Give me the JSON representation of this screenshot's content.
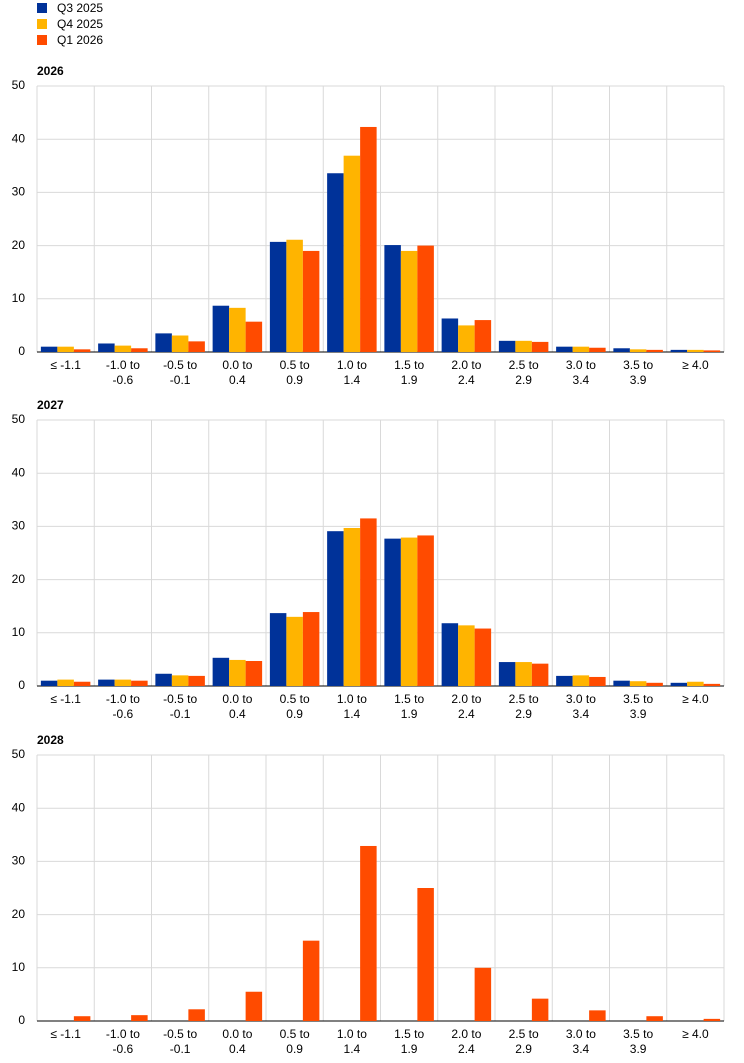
{
  "chart_data": [
    {
      "type": "bar",
      "title": "2026",
      "categories": [
        "≤ -1.1",
        "-1.0 to -0.6",
        "-0.5 to -0.1",
        "0.0 to 0.4",
        "0.5 to 0.9",
        "1.0 to 1.4",
        "1.5 to 1.9",
        "2.0 to 2.4",
        "2.5 to 2.9",
        "3.0 to 3.4",
        "3.5 to 3.9",
        "≥ 4.0"
      ],
      "series": [
        {
          "name": "Q3 2025",
          "color": "#003299",
          "values": [
            1.0,
            1.6,
            3.5,
            8.7,
            20.7,
            33.6,
            20.1,
            6.3,
            2.1,
            1.0,
            0.7,
            0.4
          ]
        },
        {
          "name": "Q4 2025",
          "color": "#ffb400",
          "values": [
            1.0,
            1.2,
            3.1,
            8.3,
            21.1,
            36.9,
            19.0,
            5.0,
            2.1,
            1.0,
            0.5,
            0.4
          ]
        },
        {
          "name": "Q1 2026",
          "color": "#ff4b00",
          "values": [
            0.5,
            0.7,
            2.0,
            5.7,
            19.0,
            42.3,
            20.0,
            6.0,
            1.9,
            0.8,
            0.4,
            0.3
          ]
        }
      ],
      "ylim": [
        0,
        50
      ],
      "yticks": [
        0,
        10,
        20,
        30,
        40,
        50
      ],
      "grid": true
    },
    {
      "type": "bar",
      "title": "2027",
      "categories": [
        "≤ -1.1",
        "-1.0 to -0.6",
        "-0.5 to -0.1",
        "0.0 to 0.4",
        "0.5 to 0.9",
        "1.0 to 1.4",
        "1.5 to 1.9",
        "2.0 to 2.4",
        "2.5 to 2.9",
        "3.0 to 3.4",
        "3.5 to 3.9",
        "≥ 4.0"
      ],
      "series": [
        {
          "name": "Q3 2025",
          "color": "#003299",
          "values": [
            1.0,
            1.2,
            2.3,
            5.3,
            13.7,
            29.1,
            27.7,
            11.8,
            4.5,
            1.9,
            1.0,
            0.6
          ]
        },
        {
          "name": "Q4 2025",
          "color": "#ffb400",
          "values": [
            1.2,
            1.2,
            2.0,
            4.9,
            13.0,
            29.7,
            27.9,
            11.4,
            4.5,
            2.0,
            0.9,
            0.8
          ]
        },
        {
          "name": "Q1 2026",
          "color": "#ff4b00",
          "values": [
            0.8,
            1.0,
            1.9,
            4.7,
            13.9,
            31.5,
            28.3,
            10.8,
            4.2,
            1.7,
            0.6,
            0.4
          ]
        }
      ],
      "ylim": [
        0,
        50
      ],
      "yticks": [
        0,
        10,
        20,
        30,
        40,
        50
      ],
      "grid": true
    },
    {
      "type": "bar",
      "title": "2028",
      "categories": [
        "≤ -1.1",
        "-1.0 to -0.6",
        "-0.5 to -0.1",
        "0.0 to 0.4",
        "0.5 to 0.9",
        "1.0 to 1.4",
        "1.5 to 1.9",
        "2.0 to 2.4",
        "2.5 to 2.9",
        "3.0 to 3.4",
        "3.5 to 3.9",
        "≥ 4.0"
      ],
      "series": [
        {
          "name": "Q1 2026",
          "color": "#ff4b00",
          "values": [
            0.9,
            1.1,
            2.2,
            5.5,
            15.1,
            32.9,
            25.0,
            10.0,
            4.2,
            2.0,
            0.9,
            0.4
          ]
        }
      ],
      "ylim": [
        0,
        50
      ],
      "yticks": [
        0,
        10,
        20,
        30,
        40,
        50
      ],
      "grid": true
    }
  ]
}
